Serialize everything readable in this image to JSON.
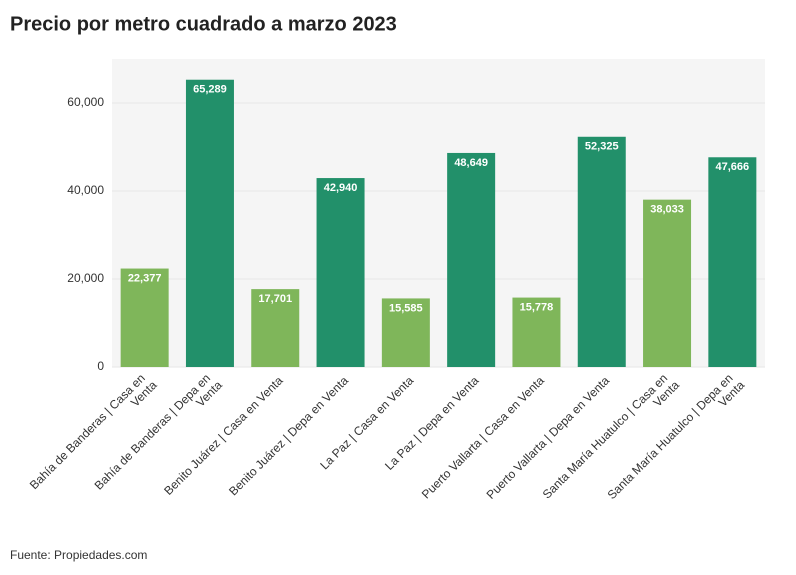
{
  "chart_data": {
    "type": "bar",
    "title": "Precio por metro cuadrado a marzo 2023",
    "categories": [
      "Bahía de Banderas | Casa en Venta",
      "Bahía de Banderas | Depa en Venta",
      "Benito Juárez | Casa en Venta",
      "Benito Juárez | Depa en Venta",
      "La Paz | Casa en Venta",
      "La Paz | Depa en Venta",
      "Puerto Vallarta | Casa en Venta",
      "Puerto Vallarta | Depa en Venta",
      "Santa María Huatulco | Casa en Venta",
      "Santa María Huatulco | Depa en Venta"
    ],
    "values": [
      22377,
      65289,
      17701,
      42940,
      15585,
      48649,
      15778,
      52325,
      38033,
      47666
    ],
    "value_labels": [
      "22,377",
      "65,289",
      "17,701",
      "42,940",
      "15,585",
      "48,649",
      "15,778",
      "52,325",
      "38,033",
      "47,666"
    ],
    "colors": [
      "#7fb65a",
      "#22906a",
      "#7fb65a",
      "#22906a",
      "#7fb65a",
      "#22906a",
      "#7fb65a",
      "#22906a",
      "#7fb65a",
      "#22906a"
    ],
    "ylim": [
      0,
      70000
    ],
    "yticks": [
      0,
      {
        "value": 20000,
        "label": "20,000"
      },
      {
        "value": 40000,
        "label": "40,000"
      },
      {
        "value": 60000,
        "label": "60,000"
      }
    ],
    "grid": true,
    "source": "Fuente: Propiedades.com"
  }
}
